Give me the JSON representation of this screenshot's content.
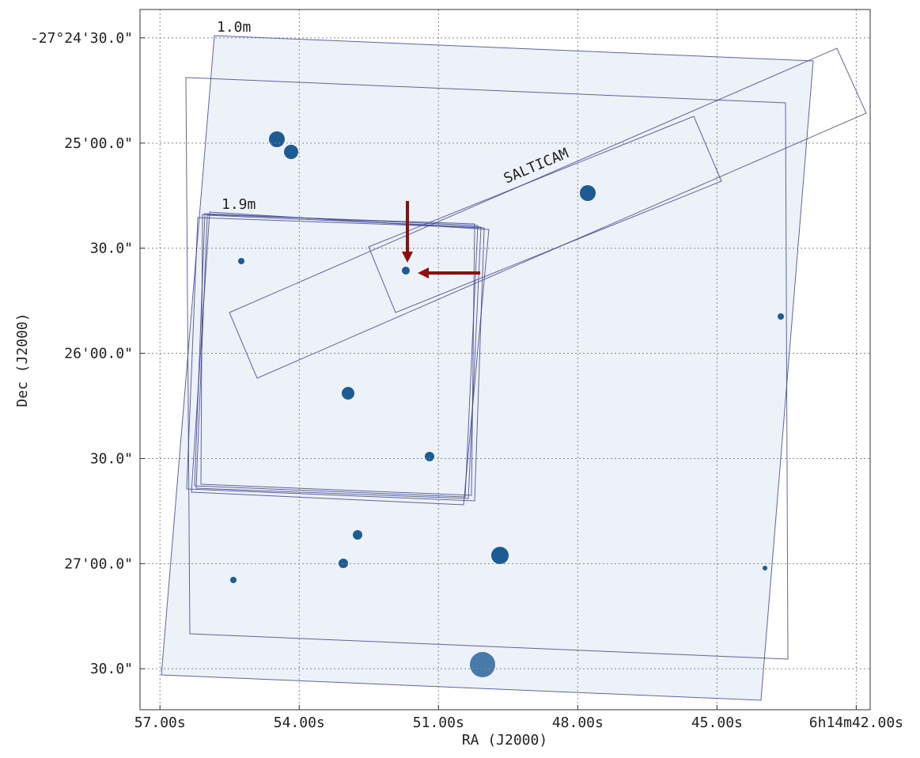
{
  "chart_data": {
    "type": "sky-image",
    "xlabel": "RA (J2000)",
    "ylabel": "Dec (J2000)",
    "annotations": [
      "1.0m",
      "1.9m",
      "SALTICAM"
    ],
    "xlim": [
      57.43,
      41.7
    ],
    "xticks": [
      {
        "value": 57,
        "label": "57.00s"
      },
      {
        "value": 54,
        "label": "54.00s"
      },
      {
        "value": 51,
        "label": "51.00s"
      },
      {
        "value": 48,
        "label": "48.00s"
      },
      {
        "value": 45,
        "label": "45.00s"
      },
      {
        "value": 42,
        "label": "6h14m42.00s"
      }
    ],
    "ylim": [
      -27.46158,
      -27.40608
    ],
    "yticks": [
      {
        "value": -27.40833,
        "label": "-27°24'30.0\""
      },
      {
        "value": -27.41667,
        "label": "25'00.0\""
      },
      {
        "value": -27.425,
        "label": "30.0\""
      },
      {
        "value": -27.43333,
        "label": "26'00.0\""
      },
      {
        "value": -27.44167,
        "label": "30.0\""
      },
      {
        "value": -27.45,
        "label": "27'00.0\""
      },
      {
        "value": -27.45833,
        "label": "30.0\""
      }
    ],
    "grid": true
  }
}
